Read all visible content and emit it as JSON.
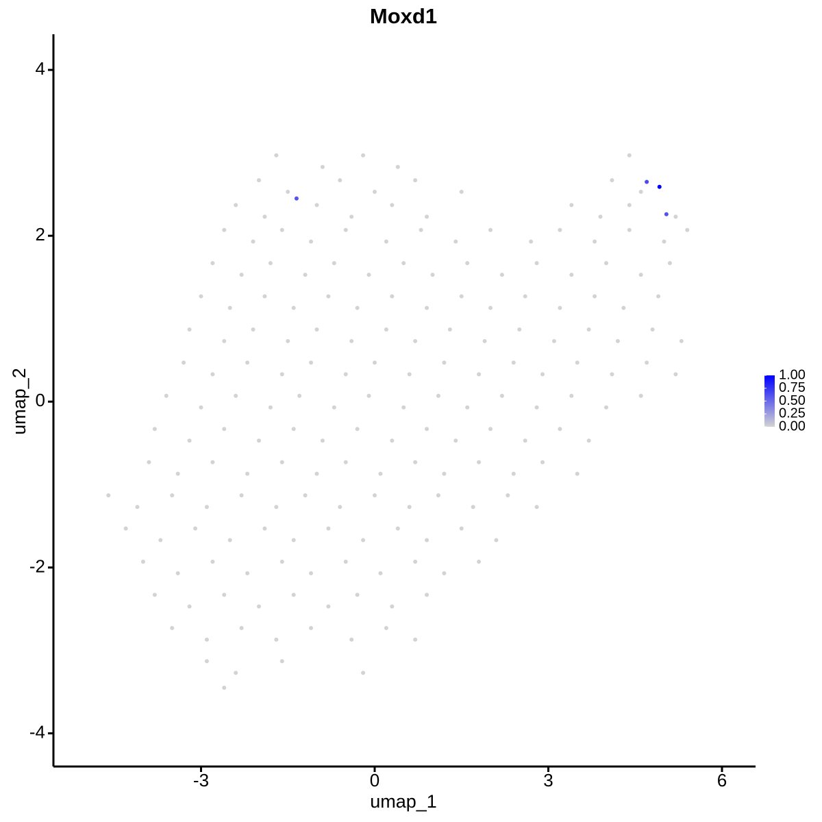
{
  "chart_data": {
    "type": "scatter",
    "title": "Moxd1",
    "x_label": "umap_1",
    "y_label": "umap_2",
    "xlim": [
      -5.55,
      6.58
    ],
    "ylim": [
      -4.4,
      4.43
    ],
    "xticks": [
      -3,
      0,
      3,
      6
    ],
    "yticks": [
      -4,
      -2,
      0,
      2,
      4
    ],
    "color_scale": [
      "#d3d3d3",
      "#0000ff"
    ],
    "clim": [
      0,
      1
    ],
    "cticks": [
      {
        "value": 0,
        "label": "0.00"
      },
      {
        "value": 0.25,
        "label": "0.25"
      },
      {
        "value": 0.5,
        "label": "0.50"
      },
      {
        "value": 0.75,
        "label": "0.75"
      },
      {
        "value": 1,
        "label": "1.00"
      }
    ],
    "x": [
      -1.7,
      -0.9,
      -0.2,
      0.4,
      4.4,
      -2.0,
      -1.5,
      -0.6,
      0.0,
      0.7,
      1.5,
      4.1,
      4.6,
      -2.4,
      -1.9,
      -1.0,
      -0.4,
      0.3,
      0.9,
      3.4,
      3.9,
      4.4,
      5.2,
      -2.6,
      -2.1,
      -1.6,
      -1.1,
      -0.5,
      0.2,
      0.8,
      1.4,
      2.0,
      2.7,
      3.2,
      3.8,
      4.4,
      5.0,
      5.4,
      -2.8,
      -2.3,
      -1.8,
      -1.2,
      -0.7,
      -0.1,
      0.5,
      1.0,
      1.6,
      2.2,
      2.8,
      3.4,
      4.0,
      4.6,
      5.1,
      -3.0,
      -2.5,
      -1.9,
      -1.4,
      -0.8,
      -0.3,
      0.3,
      0.9,
      1.5,
      2.0,
      2.6,
      3.2,
      3.8,
      4.3,
      4.9,
      -3.2,
      -2.6,
      -2.1,
      -1.5,
      -1.0,
      -0.4,
      0.2,
      0.7,
      1.3,
      1.9,
      2.5,
      3.1,
      3.7,
      4.2,
      4.8,
      5.3,
      -3.3,
      -2.8,
      -2.2,
      -1.6,
      -1.1,
      -0.5,
      0.0,
      0.6,
      1.2,
      1.8,
      2.4,
      2.9,
      3.5,
      4.1,
      4.7,
      5.2,
      -3.6,
      -3.0,
      -2.4,
      -1.8,
      -1.3,
      -0.7,
      -0.1,
      0.5,
      1.1,
      1.6,
      2.2,
      2.8,
      3.4,
      4.0,
      4.6,
      -3.8,
      -3.2,
      -2.6,
      -2.0,
      -1.4,
      -0.9,
      -0.3,
      0.3,
      0.9,
      1.4,
      2.0,
      2.6,
      3.2,
      3.7,
      -3.9,
      -3.4,
      -2.8,
      -2.2,
      -1.6,
      -1.0,
      -0.5,
      0.1,
      0.7,
      1.2,
      1.8,
      2.4,
      2.9,
      3.5,
      -4.6,
      -4.1,
      -3.5,
      -2.9,
      -2.3,
      -1.7,
      -1.2,
      -0.6,
      0.0,
      0.6,
      1.1,
      1.7,
      2.3,
      2.8,
      -4.3,
      -3.7,
      -3.1,
      -2.5,
      -1.9,
      -1.4,
      -0.8,
      -0.2,
      0.4,
      0.9,
      1.5,
      2.1,
      -4.0,
      -3.4,
      -2.8,
      -2.2,
      -1.6,
      -1.1,
      -0.5,
      0.1,
      0.7,
      1.2,
      1.8,
      -3.8,
      -3.2,
      -2.6,
      -2.0,
      -1.4,
      -0.8,
      -0.3,
      0.3,
      0.9,
      -3.5,
      -2.9,
      -2.3,
      -1.7,
      -1.1,
      -0.4,
      0.2,
      0.7,
      -2.9,
      -2.4,
      -1.6,
      -0.2,
      -2.6,
      4.7,
      4.92,
      5.04,
      -1.35
    ],
    "y": [
      2.97,
      2.83,
      2.97,
      2.83,
      2.97,
      2.67,
      2.53,
      2.67,
      2.53,
      2.67,
      2.53,
      2.67,
      2.53,
      2.37,
      2.23,
      2.37,
      2.23,
      2.37,
      2.23,
      2.37,
      2.23,
      2.37,
      2.23,
      2.07,
      1.93,
      2.07,
      1.93,
      2.07,
      1.93,
      2.07,
      1.93,
      2.07,
      1.93,
      2.07,
      1.93,
      2.07,
      1.93,
      2.07,
      1.67,
      1.53,
      1.67,
      1.53,
      1.67,
      1.53,
      1.67,
      1.53,
      1.67,
      1.53,
      1.67,
      1.53,
      1.67,
      1.53,
      1.67,
      1.27,
      1.13,
      1.27,
      1.13,
      1.27,
      1.13,
      1.27,
      1.13,
      1.27,
      1.13,
      1.27,
      1.13,
      1.27,
      1.13,
      1.27,
      0.87,
      0.73,
      0.87,
      0.73,
      0.87,
      0.73,
      0.87,
      0.73,
      0.87,
      0.73,
      0.87,
      0.73,
      0.87,
      0.73,
      0.87,
      0.73,
      0.47,
      0.33,
      0.47,
      0.33,
      0.47,
      0.33,
      0.47,
      0.33,
      0.47,
      0.33,
      0.47,
      0.33,
      0.47,
      0.33,
      0.47,
      0.33,
      0.07,
      -0.07,
      0.07,
      -0.07,
      0.07,
      -0.07,
      0.07,
      -0.07,
      0.07,
      -0.07,
      0.07,
      -0.07,
      0.07,
      -0.07,
      0.07,
      -0.33,
      -0.47,
      -0.33,
      -0.47,
      -0.33,
      -0.47,
      -0.33,
      -0.47,
      -0.33,
      -0.47,
      -0.33,
      -0.47,
      -0.33,
      -0.47,
      -0.73,
      -0.87,
      -0.73,
      -0.87,
      -0.73,
      -0.87,
      -0.73,
      -0.87,
      -0.73,
      -0.87,
      -0.73,
      -0.87,
      -0.73,
      -0.87,
      -1.13,
      -1.27,
      -1.13,
      -1.27,
      -1.13,
      -1.27,
      -1.13,
      -1.27,
      -1.13,
      -1.27,
      -1.13,
      -1.27,
      -1.13,
      -1.27,
      -1.53,
      -1.67,
      -1.53,
      -1.67,
      -1.53,
      -1.67,
      -1.53,
      -1.67,
      -1.53,
      -1.67,
      -1.53,
      -1.67,
      -1.93,
      -2.07,
      -1.93,
      -2.07,
      -1.93,
      -2.07,
      -1.93,
      -2.07,
      -1.93,
      -2.07,
      -1.93,
      -2.33,
      -2.47,
      -2.33,
      -2.47,
      -2.33,
      -2.47,
      -2.33,
      -2.47,
      -2.33,
      -2.73,
      -2.87,
      -2.73,
      -2.87,
      -2.73,
      -2.87,
      -2.73,
      -2.87,
      -3.13,
      -3.27,
      -3.13,
      -3.27,
      -3.45,
      2.65,
      2.59,
      2.26,
      2.45
    ],
    "expression": [
      0,
      0,
      0,
      0,
      0,
      0,
      0,
      0,
      0,
      0,
      0,
      0,
      0,
      0,
      0,
      0,
      0,
      0,
      0,
      0,
      0,
      0,
      0,
      0,
      0,
      0,
      0,
      0,
      0,
      0,
      0,
      0,
      0,
      0,
      0,
      0,
      0,
      0,
      0,
      0,
      0,
      0,
      0,
      0,
      0,
      0,
      0,
      0,
      0,
      0,
      0,
      0,
      0,
      0,
      0,
      0,
      0,
      0,
      0,
      0,
      0,
      0,
      0,
      0,
      0,
      0,
      0,
      0,
      0,
      0,
      0,
      0,
      0,
      0,
      0,
      0,
      0,
      0,
      0,
      0,
      0,
      0,
      0,
      0,
      0,
      0,
      0,
      0,
      0,
      0,
      0,
      0,
      0,
      0,
      0,
      0,
      0,
      0,
      0,
      0,
      0,
      0,
      0,
      0,
      0,
      0,
      0,
      0,
      0,
      0,
      0,
      0,
      0,
      0,
      0,
      0,
      0,
      0,
      0,
      0,
      0,
      0,
      0,
      0,
      0,
      0,
      0,
      0,
      0,
      0,
      0,
      0,
      0,
      0,
      0,
      0,
      0,
      0,
      0,
      0,
      0,
      0,
      0,
      0,
      0,
      0,
      0,
      0,
      0,
      0,
      0,
      0,
      0,
      0,
      0,
      0,
      0,
      0,
      0,
      0,
      0,
      0,
      0,
      0,
      0,
      0,
      0,
      0,
      0,
      0,
      0,
      0,
      0,
      0,
      0,
      0,
      0,
      0,
      0,
      0,
      0,
      0,
      0,
      0,
      0,
      0,
      0,
      0,
      0,
      0,
      0,
      0,
      0,
      0,
      0,
      0,
      0,
      0,
      0,
      0,
      0,
      0,
      0.65,
      1,
      0.6,
      0.6
    ]
  }
}
